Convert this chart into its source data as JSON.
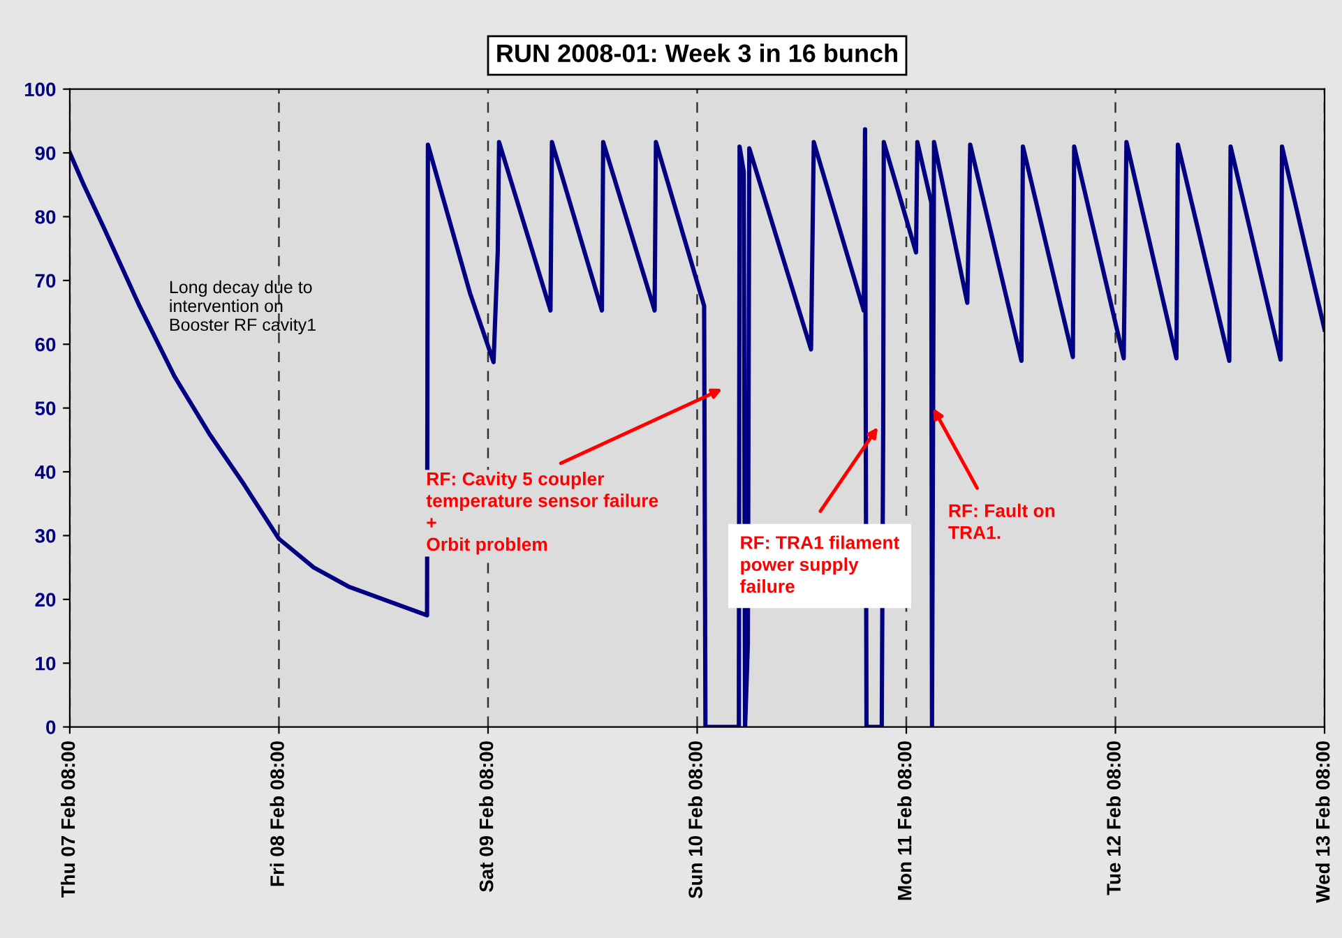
{
  "chart_data": {
    "type": "line",
    "title": "RUN 2008-01: Week 3 in 16 bunch",
    "x": [
      "2008-02-07T08:00",
      "2008-02-07T09:36",
      "2008-02-07T12:00",
      "2008-02-07T16:00",
      "2008-02-07T20:00",
      "2008-02-08T00:00",
      "2008-02-08T04:00",
      "2008-02-08T08:00",
      "2008-02-08T12:00",
      "2008-02-08T16:00",
      "2008-02-08T20:00",
      "2008-02-09T01:00",
      "2008-02-09T01:03",
      "2008-02-09T01:06",
      "2008-02-09T05:56",
      "2008-02-09T08:38",
      "2008-02-09T09:07",
      "2008-02-09T09:16",
      "2008-02-09T15:10",
      "2008-02-09T15:20",
      "2008-02-09T21:04",
      "2008-02-09T21:13",
      "2008-02-10T03:07",
      "2008-02-10T03:16",
      "2008-02-10T08:48",
      "2008-02-10T08:57",
      "2008-02-10T12:47",
      "2008-02-10T12:52",
      "2008-02-10T13:21",
      "2008-02-10T13:30",
      "2008-02-10T13:49",
      "2008-02-10T13:59",
      "2008-02-10T21:04",
      "2008-02-10T21:23",
      "2008-02-11T03:07",
      "2008-02-11T03:16",
      "2008-02-11T03:26",
      "2008-02-11T05:11",
      "2008-02-11T05:21",
      "2008-02-11T05:25",
      "2008-02-11T09:07",
      "2008-02-11T09:16",
      "2008-02-11T10:52",
      "2008-02-11T10:57",
      "2008-02-11T11:11",
      "2008-02-11T15:00",
      "2008-02-11T15:20",
      "2008-02-11T21:13",
      "2008-02-11T21:23",
      "2008-02-12T03:07",
      "2008-02-12T03:16",
      "2008-02-12T08:57",
      "2008-02-12T09:16",
      "2008-02-12T15:00",
      "2008-02-12T15:10",
      "2008-02-12T21:04",
      "2008-02-12T21:13",
      "2008-02-13T02:57",
      "2008-02-13T03:07",
      "2008-02-13T08:00"
    ],
    "series": [
      {
        "color": "#000080",
        "values": [
          90,
          85,
          78,
          66,
          55,
          46,
          38,
          29.5,
          25,
          22,
          20,
          17.5,
          60,
          91.3,
          68,
          57.2,
          74.6,
          91.7,
          65.3,
          91.7,
          65.3,
          91.7,
          65.3,
          91.7,
          66,
          0,
          0,
          91,
          87,
          0,
          13,
          90.7,
          59.2,
          91.7,
          65.3,
          93.7,
          0,
          0,
          47,
          91.7,
          74.4,
          91.7,
          82.2,
          0,
          91.7,
          66.5,
          91.3,
          57.4,
          91,
          58,
          91,
          57.8,
          91.7,
          57.8,
          91.3,
          57.4,
          91,
          57.6,
          91,
          62.3
        ]
      }
    ],
    "xlim": [
      "2008-02-07T08:00",
      "2008-02-13T08:00"
    ],
    "xticks": [
      {
        "value": "2008-02-07T08:00",
        "label": "Thu 07 Feb 08:00"
      },
      {
        "value": "2008-02-08T08:00",
        "label": "Fri 08 Feb 08:00"
      },
      {
        "value": "2008-02-09T08:00",
        "label": "Sat 09 Feb 08:00"
      },
      {
        "value": "2008-02-10T08:00",
        "label": "Sun 10 Feb 08:00"
      },
      {
        "value": "2008-02-11T08:00",
        "label": "Mon 11 Feb 08:00"
      },
      {
        "value": "2008-02-12T08:00",
        "label": "Tue 12 Feb 08:00"
      },
      {
        "value": "2008-02-13T08:00",
        "label": "Wed 13 Feb 08:00"
      }
    ],
    "ylim": [
      0,
      100
    ],
    "yticks": [
      0,
      10,
      20,
      30,
      40,
      50,
      60,
      70,
      80,
      90,
      100
    ],
    "grid": "x",
    "marker": "none",
    "line_style": "solid",
    "annotations": [
      "Long decay due to\nintervention on\nBooster RF cavity1",
      "RF: Cavity 5 coupler\ntemperature sensor failure\n+\nOrbit problem",
      "RF: TRA1 filament\npower supply\nfailure",
      {
        "text": "RF: Fault on\nTRA1.",
        "x": "2008-02-11T11:05",
        "y": 50
      }
    ]
  }
}
